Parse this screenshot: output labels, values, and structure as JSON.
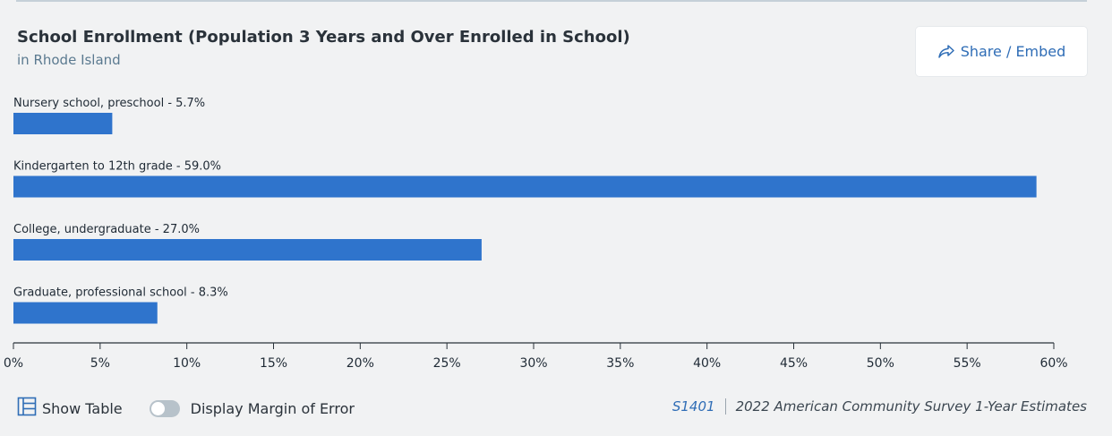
{
  "header": {
    "title": "School Enrollment (Population 3 Years and Over Enrolled in School)",
    "subtitle": "in Rhode Island",
    "share_label": "Share / Embed"
  },
  "chart_data": {
    "type": "bar",
    "orientation": "horizontal",
    "categories": [
      "Nursery school, preschool",
      "Kindergarten to 12th grade",
      "College, undergraduate",
      "Graduate, professional school"
    ],
    "values": [
      5.7,
      59.0,
      27.0,
      8.3
    ],
    "bar_labels": [
      "Nursery school, preschool - 5.7%",
      "Kindergarten to 12th grade - 59.0%",
      "College, undergraduate - 27.0%",
      "Graduate, professional school - 8.3%"
    ],
    "xlim": [
      0,
      60
    ],
    "xticks": [
      0,
      5,
      10,
      15,
      20,
      25,
      30,
      35,
      40,
      45,
      50,
      55,
      60
    ],
    "xtick_labels": [
      "0%",
      "5%",
      "10%",
      "15%",
      "20%",
      "25%",
      "30%",
      "35%",
      "40%",
      "45%",
      "50%",
      "55%",
      "60%"
    ],
    "bar_color": "#2f74cc",
    "grid": false
  },
  "footer": {
    "show_table_label": "Show Table",
    "margin_of_error_label": "Display Margin of Error",
    "margin_of_error_enabled": false,
    "table_id": "S1401",
    "source": "2022 American Community Survey 1-Year Estimates"
  },
  "colors": {
    "accent": "#2f6db6",
    "bar": "#2f74cc",
    "background": "#f1f2f3"
  }
}
